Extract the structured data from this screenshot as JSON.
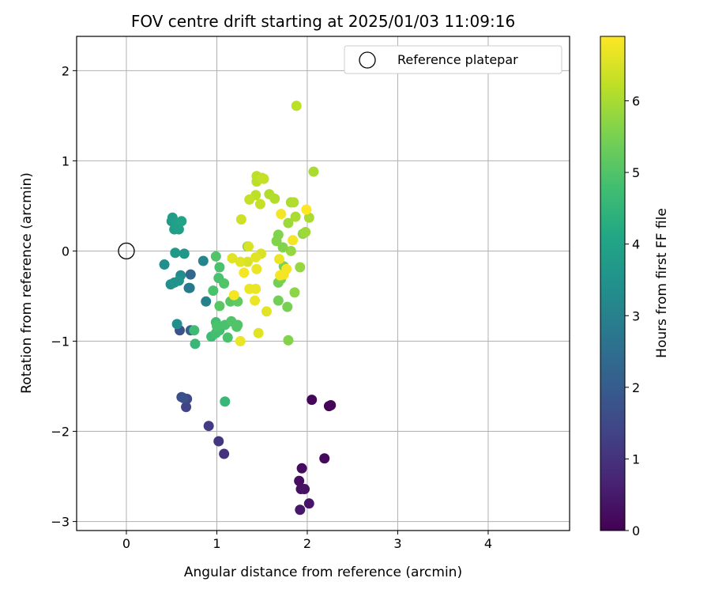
{
  "chart_data": {
    "type": "scatter",
    "title": "FOV centre drift starting at 2025/01/03 11:09:16",
    "xlabel": "Angular distance from reference (arcmin)",
    "ylabel": "Rotation from reference (arcmin)",
    "xlim": [
      -0.55,
      4.9
    ],
    "ylim": [
      -3.1,
      2.38
    ],
    "xticks": [
      0,
      1,
      2,
      3,
      4
    ],
    "xtick_labels": [
      "0",
      "1",
      "2",
      "3",
      "4"
    ],
    "yticks": [
      -3,
      -2,
      -1,
      0,
      1,
      2
    ],
    "ytick_labels": [
      "−3",
      "−2",
      "−1",
      "0",
      "1",
      "2"
    ],
    "grid": true,
    "legend": {
      "position": "top-right",
      "label": "Reference platepar"
    },
    "reference_point": {
      "x": 0,
      "y": 0
    },
    "colorbar": {
      "label": "Hours from first FF file",
      "range": [
        0,
        6.9
      ],
      "ticks": [
        0,
        1,
        2,
        3,
        4,
        5,
        6
      ],
      "tick_labels": [
        "0",
        "1",
        "2",
        "3",
        "4",
        "5",
        "6"
      ],
      "colormap": "viridis"
    },
    "points": [
      {
        "x": 2.05,
        "y": -1.65,
        "c": 0.1
      },
      {
        "x": 2.24,
        "y": -1.72,
        "c": 0.05
      },
      {
        "x": 2.26,
        "y": -1.71,
        "c": 0.1
      },
      {
        "x": 2.19,
        "y": -2.3,
        "c": 0.15
      },
      {
        "x": 1.94,
        "y": -2.41,
        "c": 0.2
      },
      {
        "x": 1.91,
        "y": -2.55,
        "c": 0.25
      },
      {
        "x": 1.93,
        "y": -2.64,
        "c": 0.3
      },
      {
        "x": 1.97,
        "y": -2.64,
        "c": 0.35
      },
      {
        "x": 2.02,
        "y": -2.8,
        "c": 0.4
      },
      {
        "x": 1.92,
        "y": -2.87,
        "c": 0.45
      },
      {
        "x": 1.08,
        "y": -2.25,
        "c": 1.0
      },
      {
        "x": 1.02,
        "y": -2.11,
        "c": 1.1
      },
      {
        "x": 0.91,
        "y": -1.94,
        "c": 1.2
      },
      {
        "x": 0.66,
        "y": -1.73,
        "c": 1.4
      },
      {
        "x": 0.67,
        "y": -1.64,
        "c": 1.5
      },
      {
        "x": 0.61,
        "y": -1.62,
        "c": 1.6
      },
      {
        "x": 0.63,
        "y": -1.63,
        "c": 1.7
      },
      {
        "x": 0.59,
        "y": -0.88,
        "c": 1.8
      },
      {
        "x": 0.71,
        "y": -0.88,
        "c": 2.1
      },
      {
        "x": 0.71,
        "y": -0.26,
        "c": 2.3
      },
      {
        "x": 0.7,
        "y": -0.41,
        "c": 2.7
      },
      {
        "x": 0.69,
        "y": -0.41,
        "c": 2.8
      },
      {
        "x": 0.88,
        "y": -0.56,
        "c": 3.0
      },
      {
        "x": 0.85,
        "y": -0.11,
        "c": 3.1
      },
      {
        "x": 0.6,
        "y": -0.27,
        "c": 3.3
      },
      {
        "x": 0.56,
        "y": -0.81,
        "c": 3.4
      },
      {
        "x": 0.42,
        "y": -0.15,
        "c": 3.4
      },
      {
        "x": 0.49,
        "y": -0.37,
        "c": 3.4
      },
      {
        "x": 0.53,
        "y": -0.35,
        "c": 3.5
      },
      {
        "x": 0.58,
        "y": -0.33,
        "c": 3.5
      },
      {
        "x": 0.64,
        "y": -0.03,
        "c": 3.6
      },
      {
        "x": 0.54,
        "y": -0.02,
        "c": 3.7
      },
      {
        "x": 0.5,
        "y": 0.33,
        "c": 3.7
      },
      {
        "x": 0.51,
        "y": 0.37,
        "c": 3.8
      },
      {
        "x": 0.53,
        "y": 0.24,
        "c": 3.8
      },
      {
        "x": 0.58,
        "y": 0.24,
        "c": 3.9
      },
      {
        "x": 0.55,
        "y": 0.3,
        "c": 3.9
      },
      {
        "x": 0.61,
        "y": 0.33,
        "c": 4.0
      },
      {
        "x": 0.76,
        "y": -1.03,
        "c": 4.6
      },
      {
        "x": 0.75,
        "y": -0.88,
        "c": 4.7
      },
      {
        "x": 1.09,
        "y": -1.67,
        "c": 4.6
      },
      {
        "x": 0.94,
        "y": -0.95,
        "c": 4.7
      },
      {
        "x": 0.99,
        "y": -0.91,
        "c": 4.8
      },
      {
        "x": 1.03,
        "y": -0.88,
        "c": 4.8
      },
      {
        "x": 0.99,
        "y": -0.79,
        "c": 4.8
      },
      {
        "x": 1.0,
        "y": -0.83,
        "c": 4.9
      },
      {
        "x": 1.09,
        "y": -0.82,
        "c": 4.9
      },
      {
        "x": 1.12,
        "y": -0.96,
        "c": 4.9
      },
      {
        "x": 1.16,
        "y": -0.78,
        "c": 5.0
      },
      {
        "x": 1.22,
        "y": -0.84,
        "c": 5.0
      },
      {
        "x": 1.23,
        "y": -0.82,
        "c": 5.0
      },
      {
        "x": 0.96,
        "y": -0.44,
        "c": 4.9
      },
      {
        "x": 1.02,
        "y": -0.3,
        "c": 4.9
      },
      {
        "x": 1.03,
        "y": -0.18,
        "c": 4.9
      },
      {
        "x": 0.99,
        "y": -0.06,
        "c": 5.0
      },
      {
        "x": 1.08,
        "y": -0.36,
        "c": 5.0
      },
      {
        "x": 1.03,
        "y": -0.61,
        "c": 5.1
      },
      {
        "x": 1.15,
        "y": -0.56,
        "c": 5.1
      },
      {
        "x": 1.23,
        "y": -0.56,
        "c": 5.2
      },
      {
        "x": 1.34,
        "y": 0.05,
        "c": 5.3
      },
      {
        "x": 1.68,
        "y": -0.35,
        "c": 5.4
      },
      {
        "x": 1.68,
        "y": -0.55,
        "c": 5.4
      },
      {
        "x": 1.78,
        "y": -0.62,
        "c": 5.5
      },
      {
        "x": 1.79,
        "y": -0.99,
        "c": 5.6
      },
      {
        "x": 1.71,
        "y": -0.31,
        "c": 5.5
      },
      {
        "x": 1.74,
        "y": -0.17,
        "c": 5.5
      },
      {
        "x": 1.86,
        "y": -0.46,
        "c": 5.7
      },
      {
        "x": 1.92,
        "y": -0.18,
        "c": 5.8
      },
      {
        "x": 1.82,
        "y": 0.0,
        "c": 5.8
      },
      {
        "x": 1.73,
        "y": 0.04,
        "c": 5.6
      },
      {
        "x": 1.66,
        "y": 0.11,
        "c": 5.6
      },
      {
        "x": 1.68,
        "y": 0.18,
        "c": 5.6
      },
      {
        "x": 1.95,
        "y": 0.19,
        "c": 5.8
      },
      {
        "x": 1.98,
        "y": 0.21,
        "c": 5.9
      },
      {
        "x": 1.79,
        "y": 0.31,
        "c": 5.9
      },
      {
        "x": 1.87,
        "y": 0.38,
        "c": 6.0
      },
      {
        "x": 2.02,
        "y": 0.37,
        "c": 6.0
      },
      {
        "x": 1.82,
        "y": 0.54,
        "c": 6.0
      },
      {
        "x": 1.85,
        "y": 0.54,
        "c": 6.1
      },
      {
        "x": 1.64,
        "y": 0.58,
        "c": 6.1
      },
      {
        "x": 1.58,
        "y": 0.63,
        "c": 6.1
      },
      {
        "x": 1.43,
        "y": 0.62,
        "c": 6.2
      },
      {
        "x": 1.44,
        "y": 0.77,
        "c": 6.2
      },
      {
        "x": 1.44,
        "y": 0.83,
        "c": 6.2
      },
      {
        "x": 1.5,
        "y": 0.81,
        "c": 6.3
      },
      {
        "x": 1.52,
        "y": 0.8,
        "c": 6.3
      },
      {
        "x": 1.36,
        "y": 0.57,
        "c": 6.3
      },
      {
        "x": 1.48,
        "y": 0.52,
        "c": 6.3
      },
      {
        "x": 1.27,
        "y": 0.35,
        "c": 6.4
      },
      {
        "x": 2.07,
        "y": 0.88,
        "c": 6.0
      },
      {
        "x": 1.88,
        "y": 1.61,
        "c": 6.2
      },
      {
        "x": 1.35,
        "y": 0.05,
        "c": 6.5
      },
      {
        "x": 1.49,
        "y": -0.03,
        "c": 6.5
      },
      {
        "x": 1.34,
        "y": -0.12,
        "c": 6.5
      },
      {
        "x": 1.26,
        "y": -0.12,
        "c": 6.6
      },
      {
        "x": 1.17,
        "y": -0.08,
        "c": 6.6
      },
      {
        "x": 1.43,
        "y": -0.07,
        "c": 6.6
      },
      {
        "x": 1.55,
        "y": -0.67,
        "c": 6.6
      },
      {
        "x": 1.46,
        "y": -0.91,
        "c": 6.6
      },
      {
        "x": 1.26,
        "y": -1.0,
        "c": 6.7
      },
      {
        "x": 1.36,
        "y": -0.42,
        "c": 6.7
      },
      {
        "x": 1.43,
        "y": -0.42,
        "c": 6.7
      },
      {
        "x": 1.42,
        "y": -0.55,
        "c": 6.7
      },
      {
        "x": 1.44,
        "y": -0.2,
        "c": 6.7
      },
      {
        "x": 1.3,
        "y": -0.24,
        "c": 6.8
      },
      {
        "x": 1.19,
        "y": -0.49,
        "c": 6.8
      },
      {
        "x": 1.69,
        "y": -0.09,
        "c": 6.7
      },
      {
        "x": 1.7,
        "y": -0.27,
        "c": 6.8
      },
      {
        "x": 1.74,
        "y": -0.26,
        "c": 6.8
      },
      {
        "x": 1.77,
        "y": -0.2,
        "c": 6.8
      },
      {
        "x": 1.71,
        "y": 0.41,
        "c": 6.8
      },
      {
        "x": 1.84,
        "y": 0.12,
        "c": 6.8
      },
      {
        "x": 1.99,
        "y": 0.46,
        "c": 6.9
      }
    ]
  }
}
